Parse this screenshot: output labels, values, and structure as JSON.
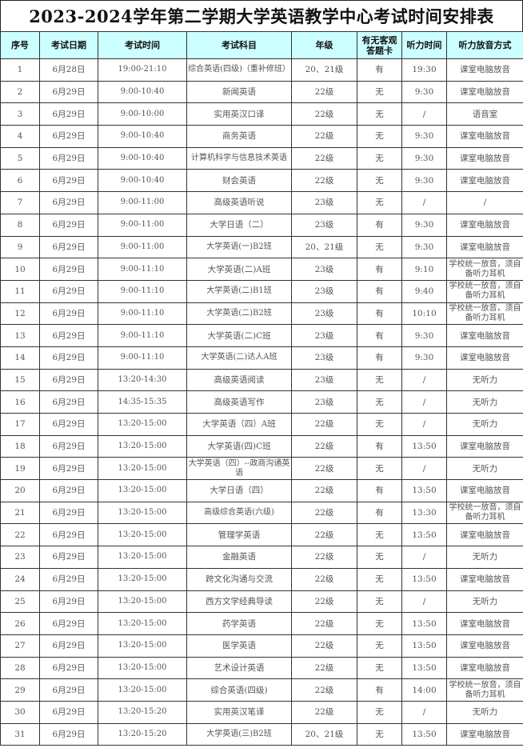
{
  "title": "2023-2024学年第二学期大学英语教学中心考试时间安排表",
  "headers": [
    "序号",
    "考试日期",
    "考试时间",
    "考试科目",
    "年级",
    "有无客观答题卡",
    "听力时间",
    "听力放音方式"
  ],
  "rows": [
    [
      "1",
      "6月28日",
      "19:00-21:10",
      "综合英语(四级)（重补修班）",
      "20、21级",
      "有",
      "19:30",
      "课室电脑放音"
    ],
    [
      "2",
      "6月29日",
      "9:00-10:40",
      "新闻英语",
      "22级",
      "无",
      "9:30",
      "课室电脑放音"
    ],
    [
      "3",
      "6月29日",
      "9:00-10:00",
      "实用英汉口译",
      "22级",
      "无",
      "/",
      "语音室"
    ],
    [
      "4",
      "6月29日",
      "9:00-10:40",
      "商务英语",
      "22级",
      "无",
      "9:30",
      "课室电脑放音"
    ],
    [
      "5",
      "6月29日",
      "9:00-10:40",
      "计算机科学与信息技术英语",
      "22级",
      "无",
      "9:30",
      "课室电脑放音"
    ],
    [
      "6",
      "6月29日",
      "9:00-10:40",
      "财会英语",
      "22级",
      "无",
      "9:30",
      "课室电脑放音"
    ],
    [
      "7",
      "6月29日",
      "9:00-11:00",
      "高级英语听说",
      "23级",
      "无",
      "/",
      "/"
    ],
    [
      "8",
      "6月29日",
      "9:00-11:00",
      "大学日语（二）",
      "23级",
      "有",
      "9:30",
      "课室电脑放音"
    ],
    [
      "9",
      "6月29日",
      "9:00-11:00",
      "大学英语(一)B2班",
      "20、21级",
      "无",
      "9:30",
      "课室电脑放音"
    ],
    [
      "10",
      "6月29日",
      "9:00-11:10",
      "大学英语(二)A班",
      "23级",
      "有",
      "9:10",
      "学校统一放音，须自备听力耳机"
    ],
    [
      "11",
      "6月29日",
      "9:00-11:10",
      "大学英语(二)B1班",
      "23级",
      "有",
      "9:40",
      "学校统一放音，须自备听力耳机"
    ],
    [
      "12",
      "6月29日",
      "9:00-11:10",
      "大学英语(二)B2班",
      "23级",
      "有",
      "10:10",
      "学校统一放音，须自备听力耳机"
    ],
    [
      "13",
      "6月29日",
      "9:00-11:10",
      "大学英语(二)C班",
      "23级",
      "有",
      "9:30",
      "课室电脑放音"
    ],
    [
      "14",
      "6月29日",
      "9:00-11:10",
      "大学英语(二)达人A班",
      "23级",
      "有",
      "9:30",
      "课室电脑放音"
    ],
    [
      "15",
      "6月29日",
      "13:20-14:30",
      "高级英语阅读",
      "23级",
      "无",
      "/",
      "无听力"
    ],
    [
      "16",
      "6月29日",
      "14:35-15:35",
      "高级英语写作",
      "23级",
      "无",
      "/",
      "无听力"
    ],
    [
      "17",
      "6月29日",
      "13:20-15:00",
      "大学英语（四）A班",
      "22级",
      "无",
      "/",
      "无听力"
    ],
    [
      "18",
      "6月29日",
      "13:20-15:00",
      "大学英语(四)C班",
      "22级",
      "有",
      "13:50",
      "课室电脑放音"
    ],
    [
      "19",
      "6月29日",
      "13:20-15:00",
      "大学英语（四）--政商沟通英语",
      "22级",
      "无",
      "/",
      "无听力"
    ],
    [
      "20",
      "6月29日",
      "13:20-15:00",
      "大学日语（四）",
      "22级",
      "有",
      "13:50",
      "课室电脑放音"
    ],
    [
      "21",
      "6月29日",
      "13:20-15:00",
      "高级综合英语(六级)",
      "22级",
      "有",
      "13:30",
      "学校统一放音，须自备听力耳机"
    ],
    [
      "22",
      "6月29日",
      "13:20-15:00",
      "管理学英语",
      "22级",
      "无",
      "13:50",
      "课室电脑放音"
    ],
    [
      "23",
      "6月29日",
      "13:20-15:00",
      "金融英语",
      "22级",
      "无",
      "/",
      "无听力"
    ],
    [
      "24",
      "6月29日",
      "13:20-15:00",
      "跨文化沟通与交流",
      "22级",
      "无",
      "13:50",
      "课室电脑放音"
    ],
    [
      "25",
      "6月29日",
      "13:20-15:00",
      "西方文学经典导读",
      "22级",
      "无",
      "/",
      "无听力"
    ],
    [
      "26",
      "6月29日",
      "13:20-15:00",
      "药学英语",
      "22级",
      "无",
      "13:50",
      "课室电脑放音"
    ],
    [
      "27",
      "6月29日",
      "13:20-15:00",
      "医学英语",
      "22级",
      "无",
      "13:50",
      "课室电脑放音"
    ],
    [
      "28",
      "6月29日",
      "13:20-15:00",
      "艺术设计英语",
      "22级",
      "无",
      "13:50",
      "课室电脑放音"
    ],
    [
      "29",
      "6月29日",
      "13:20-15:00",
      "综合英语(四级)",
      "22级",
      "有",
      "14:00",
      "学校统一放音，须自备听力耳机"
    ],
    [
      "30",
      "6月29日",
      "13:20-15:20",
      "实用英汉笔译",
      "22级",
      "无",
      "/",
      "无听力"
    ],
    [
      "31",
      "6月29日",
      "13:20-15:20",
      "大学英语(三)B2班",
      "20、21级",
      "无",
      "13:50",
      "课室电脑放音"
    ]
  ]
}
